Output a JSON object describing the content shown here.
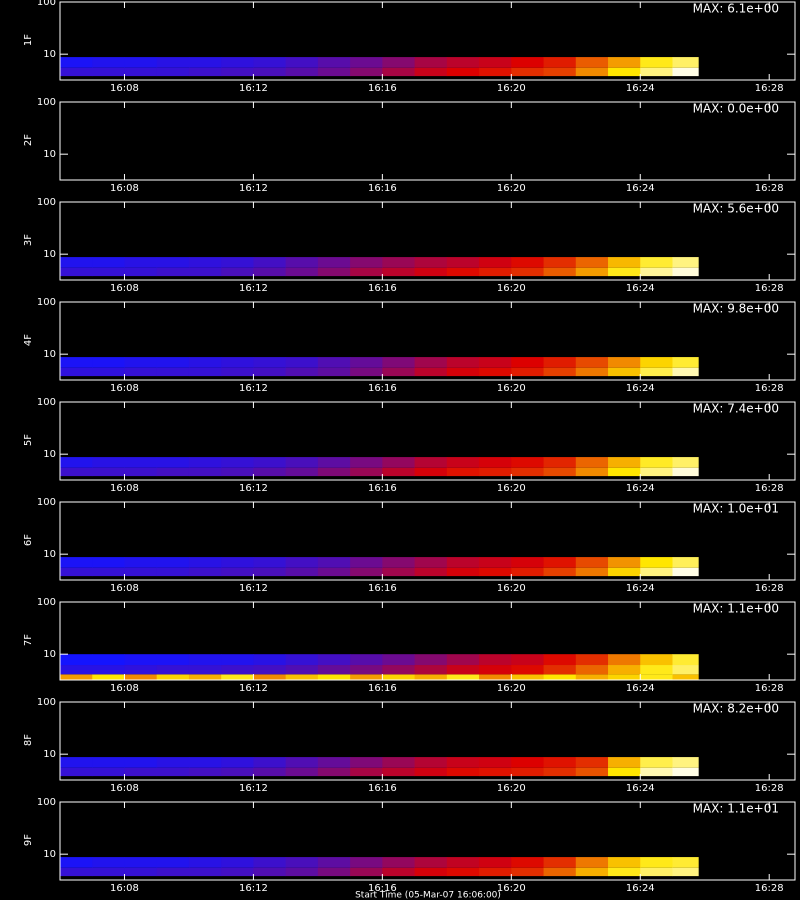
{
  "chart_data": [
    {
      "type": "heatmap",
      "ylabel": "1F",
      "annotation": "MAX: 6.1e+00",
      "log_y": true,
      "xlim": [
        966,
        988.8
      ],
      "ylim": [
        3.2,
        100
      ],
      "xticks": [
        {
          "value": 968,
          "label": "16:08"
        },
        {
          "value": 972,
          "label": "16:12"
        },
        {
          "value": 976,
          "label": "16:16"
        },
        {
          "value": 980,
          "label": "16:20"
        },
        {
          "value": 984,
          "label": "16:24"
        },
        {
          "value": 988,
          "label": "16:28"
        }
      ],
      "yticks": [
        10,
        100
      ],
      "x_edges": [
        966,
        967,
        968,
        969,
        970,
        971,
        972,
        973,
        974,
        975,
        976,
        977,
        978,
        979,
        980,
        981,
        982,
        983,
        984,
        985,
        985.8
      ],
      "y_edges": [
        3.8,
        5.5,
        8.8
      ],
      "z": [
        [
          0.3,
          0.3,
          0.3,
          0.3,
          0.31,
          0.32,
          0.33,
          0.35,
          0.38,
          0.42,
          0.47,
          0.52,
          0.55,
          0.57,
          0.6,
          0.62,
          0.7,
          0.8,
          0.9,
          0.98
        ],
        [
          0.26,
          0.27,
          0.27,
          0.28,
          0.28,
          0.29,
          0.3,
          0.32,
          0.35,
          0.38,
          0.42,
          0.47,
          0.5,
          0.52,
          0.55,
          0.58,
          0.65,
          0.72,
          0.82,
          0.88
        ]
      ]
    },
    {
      "type": "heatmap",
      "ylabel": "2F",
      "annotation": "MAX: 0.0e+00",
      "log_y": true,
      "xlim": [
        966,
        988.8
      ],
      "ylim": [
        3.2,
        100
      ],
      "xticks": [
        {
          "value": 968,
          "label": "16:08"
        },
        {
          "value": 972,
          "label": "16:12"
        },
        {
          "value": 976,
          "label": "16:16"
        },
        {
          "value": 980,
          "label": "16:20"
        },
        {
          "value": 984,
          "label": "16:24"
        },
        {
          "value": 988,
          "label": "16:28"
        }
      ],
      "yticks": [
        10,
        100
      ],
      "x_edges": [
        966,
        967,
        968,
        969,
        970,
        971,
        972,
        973,
        974,
        975,
        976,
        977,
        978,
        979,
        980,
        981,
        982,
        983,
        984,
        985,
        985.8
      ],
      "y_edges": [
        3.8,
        5.5,
        8.8
      ],
      "z": [
        [
          0,
          0,
          0,
          0,
          0,
          0,
          0,
          0,
          0,
          0,
          0,
          0,
          0,
          0,
          0,
          0,
          0,
          0,
          0,
          0
        ],
        [
          0,
          0,
          0,
          0,
          0,
          0,
          0,
          0,
          0,
          0,
          0,
          0,
          0,
          0,
          0,
          0,
          0,
          0,
          0,
          0
        ]
      ]
    },
    {
      "type": "heatmap",
      "ylabel": "3F",
      "annotation": "MAX: 5.6e+00",
      "log_y": true,
      "xlim": [
        966,
        988.8
      ],
      "ylim": [
        3.2,
        100
      ],
      "xticks": [
        {
          "value": 968,
          "label": "16:08"
        },
        {
          "value": 972,
          "label": "16:12"
        },
        {
          "value": 976,
          "label": "16:16"
        },
        {
          "value": 980,
          "label": "16:20"
        },
        {
          "value": 984,
          "label": "16:24"
        },
        {
          "value": 988,
          "label": "16:28"
        }
      ],
      "yticks": [
        10,
        100
      ],
      "x_edges": [
        966,
        967,
        968,
        969,
        970,
        971,
        972,
        973,
        974,
        975,
        976,
        977,
        978,
        979,
        980,
        981,
        982,
        983,
        984,
        985,
        985.8
      ],
      "y_edges": [
        3.8,
        5.5,
        8.8
      ],
      "z": [
        [
          0.3,
          0.3,
          0.3,
          0.31,
          0.31,
          0.33,
          0.35,
          0.38,
          0.42,
          0.47,
          0.5,
          0.53,
          0.56,
          0.58,
          0.6,
          0.65,
          0.72,
          0.82,
          0.92,
          0.97
        ],
        [
          0.27,
          0.27,
          0.28,
          0.28,
          0.29,
          0.3,
          0.32,
          0.35,
          0.38,
          0.42,
          0.45,
          0.48,
          0.5,
          0.53,
          0.56,
          0.6,
          0.66,
          0.75,
          0.84,
          0.9
        ]
      ]
    },
    {
      "type": "heatmap",
      "ylabel": "4F",
      "annotation": "MAX: 9.8e+00",
      "log_y": true,
      "xlim": [
        966,
        988.8
      ],
      "ylim": [
        3.2,
        100
      ],
      "xticks": [
        {
          "value": 968,
          "label": "16:08"
        },
        {
          "value": 972,
          "label": "16:12"
        },
        {
          "value": 976,
          "label": "16:16"
        },
        {
          "value": 980,
          "label": "16:20"
        },
        {
          "value": 984,
          "label": "16:24"
        },
        {
          "value": 988,
          "label": "16:28"
        }
      ],
      "yticks": [
        10,
        100
      ],
      "x_edges": [
        966,
        967,
        968,
        969,
        970,
        971,
        972,
        973,
        974,
        975,
        976,
        977,
        978,
        979,
        980,
        981,
        982,
        983,
        984,
        985,
        985.8
      ],
      "y_edges": [
        3.8,
        5.5,
        8.8
      ],
      "z": [
        [
          0.29,
          0.29,
          0.3,
          0.3,
          0.3,
          0.31,
          0.32,
          0.34,
          0.36,
          0.4,
          0.45,
          0.5,
          0.54,
          0.56,
          0.58,
          0.62,
          0.68,
          0.76,
          0.86,
          0.94
        ],
        [
          0.26,
          0.26,
          0.27,
          0.27,
          0.28,
          0.29,
          0.3,
          0.31,
          0.34,
          0.37,
          0.41,
          0.46,
          0.5,
          0.52,
          0.55,
          0.58,
          0.63,
          0.7,
          0.78,
          0.84
        ]
      ]
    },
    {
      "type": "heatmap",
      "ylabel": "5F",
      "annotation": "MAX: 7.4e+00",
      "log_y": true,
      "xlim": [
        966,
        988.8
      ],
      "ylim": [
        3.2,
        100
      ],
      "xticks": [
        {
          "value": 968,
          "label": "16:08"
        },
        {
          "value": 972,
          "label": "16:12"
        },
        {
          "value": 976,
          "label": "16:16"
        },
        {
          "value": 980,
          "label": "16:20"
        },
        {
          "value": 984,
          "label": "16:24"
        },
        {
          "value": 988,
          "label": "16:28"
        }
      ],
      "yticks": [
        10,
        100
      ],
      "x_edges": [
        966,
        967,
        968,
        969,
        970,
        971,
        972,
        973,
        974,
        975,
        976,
        977,
        978,
        979,
        980,
        981,
        982,
        983,
        984,
        985,
        985.8
      ],
      "y_edges": [
        3.8,
        5.5,
        8.8
      ],
      "z": [
        [
          0.31,
          0.31,
          0.31,
          0.32,
          0.32,
          0.33,
          0.35,
          0.37,
          0.41,
          0.45,
          0.5,
          0.54,
          0.57,
          0.58,
          0.6,
          0.63,
          0.7,
          0.8,
          0.9,
          0.97
        ],
        [
          0.27,
          0.28,
          0.28,
          0.28,
          0.29,
          0.3,
          0.31,
          0.33,
          0.36,
          0.4,
          0.44,
          0.49,
          0.52,
          0.54,
          0.56,
          0.59,
          0.66,
          0.74,
          0.83,
          0.88
        ]
      ]
    },
    {
      "type": "heatmap",
      "ylabel": "6F",
      "annotation": "MAX: 1.0e+01",
      "log_y": true,
      "xlim": [
        966,
        988.8
      ],
      "ylim": [
        3.2,
        100
      ],
      "xticks": [
        {
          "value": 968,
          "label": "16:08"
        },
        {
          "value": 972,
          "label": "16:12"
        },
        {
          "value": 976,
          "label": "16:16"
        },
        {
          "value": 980,
          "label": "16:20"
        },
        {
          "value": 984,
          "label": "16:24"
        },
        {
          "value": 988,
          "label": "16:28"
        }
      ],
      "yticks": [
        10,
        100
      ],
      "x_edges": [
        966,
        967,
        968,
        969,
        970,
        971,
        972,
        973,
        974,
        975,
        976,
        977,
        978,
        979,
        980,
        981,
        982,
        983,
        984,
        985,
        985.8
      ],
      "y_edges": [
        3.8,
        5.5,
        8.8
      ],
      "z": [
        [
          0.3,
          0.3,
          0.3,
          0.3,
          0.31,
          0.32,
          0.33,
          0.35,
          0.38,
          0.42,
          0.46,
          0.5,
          0.54,
          0.56,
          0.58,
          0.62,
          0.68,
          0.78,
          0.9,
          0.98
        ],
        [
          0.26,
          0.26,
          0.27,
          0.27,
          0.28,
          0.29,
          0.3,
          0.32,
          0.34,
          0.38,
          0.42,
          0.46,
          0.5,
          0.52,
          0.54,
          0.57,
          0.63,
          0.71,
          0.8,
          0.87
        ]
      ]
    },
    {
      "type": "heatmap",
      "ylabel": "7F",
      "annotation": "MAX: 1.1e+00",
      "log_y": true,
      "xlim": [
        966,
        988.8
      ],
      "ylim": [
        3.2,
        100
      ],
      "xticks": [
        {
          "value": 968,
          "label": "16:08"
        },
        {
          "value": 972,
          "label": "16:12"
        },
        {
          "value": 976,
          "label": "16:16"
        },
        {
          "value": 980,
          "label": "16:20"
        },
        {
          "value": 984,
          "label": "16:24"
        },
        {
          "value": 988,
          "label": "16:28"
        }
      ],
      "yticks": [
        10,
        100
      ],
      "x_edges": [
        966,
        967,
        968,
        969,
        970,
        971,
        972,
        973,
        974,
        975,
        976,
        977,
        978,
        979,
        980,
        981,
        982,
        983,
        984,
        985,
        985.8
      ],
      "y_edges": [
        3.2,
        4.1,
        6.2,
        10
      ],
      "z": [
        [
          0.72,
          0.8,
          0.7,
          0.78,
          0.74,
          0.82,
          0.7,
          0.76,
          0.8,
          0.72,
          0.78,
          0.74,
          0.82,
          0.7,
          0.76,
          0.8,
          0.74,
          0.78,
          0.82,
          0.76
        ],
        [
          0.28,
          0.28,
          0.29,
          0.3,
          0.3,
          0.31,
          0.32,
          0.34,
          0.37,
          0.4,
          0.44,
          0.48,
          0.52,
          0.54,
          0.56,
          0.6,
          0.66,
          0.74,
          0.82,
          0.88
        ],
        [
          0.25,
          0.25,
          0.26,
          0.26,
          0.27,
          0.27,
          0.28,
          0.3,
          0.32,
          0.35,
          0.38,
          0.42,
          0.46,
          0.5,
          0.52,
          0.56,
          0.6,
          0.68,
          0.76,
          0.84
        ]
      ]
    },
    {
      "type": "heatmap",
      "ylabel": "8F",
      "annotation": "MAX: 8.2e+00",
      "log_y": true,
      "xlim": [
        966,
        988.8
      ],
      "ylim": [
        3.2,
        100
      ],
      "xticks": [
        {
          "value": 968,
          "label": "16:08"
        },
        {
          "value": 972,
          "label": "16:12"
        },
        {
          "value": 976,
          "label": "16:16"
        },
        {
          "value": 980,
          "label": "16:20"
        },
        {
          "value": 984,
          "label": "16:24"
        },
        {
          "value": 988,
          "label": "16:28"
        }
      ],
      "yticks": [
        10,
        100
      ],
      "x_edges": [
        966,
        967,
        968,
        969,
        970,
        971,
        972,
        973,
        974,
        975,
        976,
        977,
        978,
        979,
        980,
        981,
        982,
        983,
        984,
        985,
        985.8
      ],
      "y_edges": [
        3.8,
        5.5,
        8.8
      ],
      "z": [
        [
          0.3,
          0.3,
          0.31,
          0.31,
          0.32,
          0.33,
          0.35,
          0.38,
          0.42,
          0.47,
          0.5,
          0.53,
          0.56,
          0.57,
          0.58,
          0.6,
          0.64,
          0.8,
          0.94,
          0.98
        ],
        [
          0.27,
          0.27,
          0.27,
          0.28,
          0.28,
          0.29,
          0.31,
          0.34,
          0.37,
          0.41,
          0.45,
          0.49,
          0.52,
          0.53,
          0.55,
          0.57,
          0.6,
          0.74,
          0.86,
          0.9
        ]
      ]
    },
    {
      "type": "heatmap",
      "ylabel": "9F",
      "annotation": "MAX: 1.1e+01",
      "log_y": true,
      "xlim": [
        966,
        988.8
      ],
      "ylim": [
        3.2,
        100
      ],
      "xticks": [
        {
          "value": 968,
          "label": "16:08"
        },
        {
          "value": 972,
          "label": "16:12"
        },
        {
          "value": 976,
          "label": "16:16"
        },
        {
          "value": 980,
          "label": "16:20"
        },
        {
          "value": 984,
          "label": "16:24"
        },
        {
          "value": 988,
          "label": "16:28"
        }
      ],
      "yticks": [
        10,
        100
      ],
      "x_edges": [
        966,
        967,
        968,
        969,
        970,
        971,
        972,
        973,
        974,
        975,
        976,
        977,
        978,
        979,
        980,
        981,
        982,
        983,
        984,
        985,
        985.8
      ],
      "y_edges": [
        3.8,
        5.5,
        8.8
      ],
      "z": [
        [
          0.3,
          0.3,
          0.3,
          0.31,
          0.31,
          0.32,
          0.34,
          0.36,
          0.4,
          0.45,
          0.5,
          0.54,
          0.56,
          0.58,
          0.6,
          0.66,
          0.74,
          0.82,
          0.88,
          0.9
        ],
        [
          0.26,
          0.27,
          0.27,
          0.27,
          0.28,
          0.29,
          0.31,
          0.33,
          0.36,
          0.4,
          0.44,
          0.48,
          0.51,
          0.53,
          0.56,
          0.6,
          0.68,
          0.76,
          0.82,
          0.84
        ]
      ],
      "xlabel": "Start Time (05-Mar-07 16:06:00)"
    }
  ]
}
